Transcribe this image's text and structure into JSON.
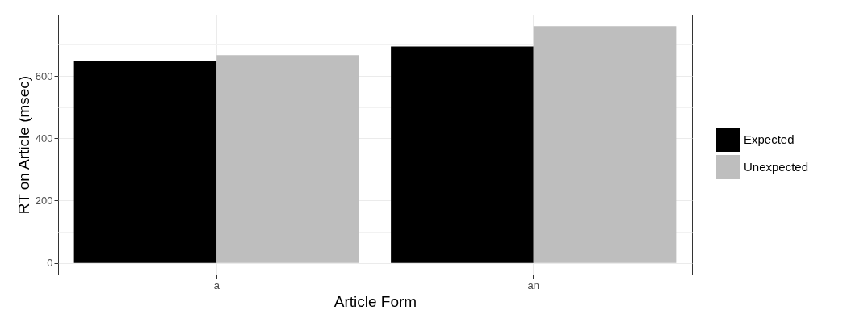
{
  "chart_data": {
    "type": "bar",
    "xlabel": "Article Form",
    "ylabel": "RT on Article (msec)",
    "categories": [
      "a",
      "an"
    ],
    "series": [
      {
        "name": "Expected",
        "color": "#000000",
        "values": [
          647,
          695
        ]
      },
      {
        "name": "Unexpected",
        "color": "#bebebe",
        "values": [
          667,
          760
        ]
      }
    ],
    "ylim": [
      -37,
      797
    ],
    "yticks": [
      0,
      200,
      400,
      600
    ],
    "grid": true,
    "legend": "right"
  }
}
